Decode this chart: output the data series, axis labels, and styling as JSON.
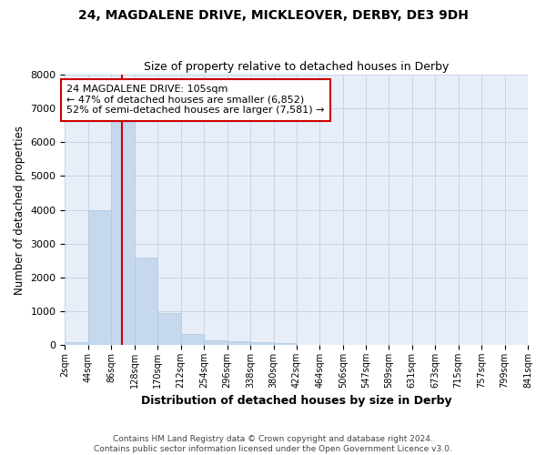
{
  "title": "24, MAGDALENE DRIVE, MICKLEOVER, DERBY, DE3 9DH",
  "subtitle": "Size of property relative to detached houses in Derby",
  "xlabel": "Distribution of detached houses by size in Derby",
  "ylabel": "Number of detached properties",
  "bar_color": "#c5d8ed",
  "bar_edge_color": "#b0c8df",
  "vline_color": "#cc0000",
  "vline_position": 105,
  "annotation_line1": "24 MAGDALENE DRIVE: 105sqm",
  "annotation_line2": "← 47% of detached houses are smaller (6,852)",
  "annotation_line3": "52% of semi-detached houses are larger (7,581) →",
  "annotation_box_edge_color": "#cc0000",
  "bin_edges": [
    2,
    44,
    86,
    128,
    170,
    212,
    254,
    296,
    338,
    380,
    422,
    464,
    506,
    547,
    589,
    631,
    673,
    715,
    757,
    799,
    841
  ],
  "bin_counts": [
    75,
    4000,
    6600,
    2600,
    950,
    320,
    130,
    110,
    75,
    60,
    0,
    0,
    0,
    0,
    0,
    0,
    0,
    0,
    0,
    0
  ],
  "ylim": [
    0,
    8000
  ],
  "yticks": [
    0,
    1000,
    2000,
    3000,
    4000,
    5000,
    6000,
    7000,
    8000
  ],
  "grid_color": "#c8d4e8",
  "plot_bg_color": "#e8eef8",
  "fig_bg_color": "#ffffff",
  "footer_line1": "Contains HM Land Registry data © Crown copyright and database right 2024.",
  "footer_line2": "Contains public sector information licensed under the Open Government Licence v3.0."
}
